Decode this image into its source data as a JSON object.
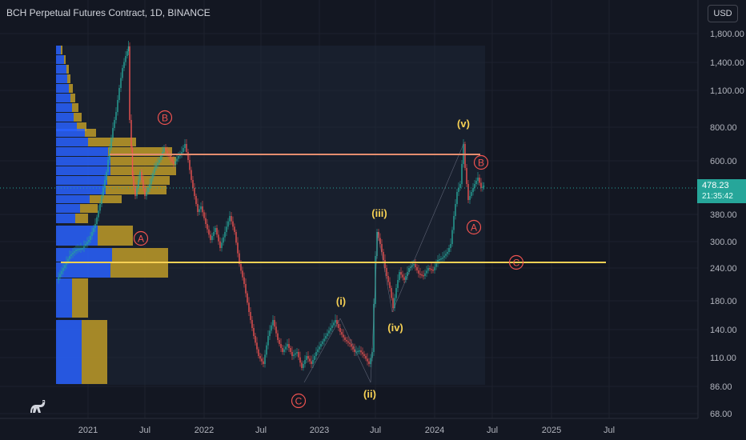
{
  "header": {
    "title": "BCH Perpetual Futures Contract, 1D, BINANCE",
    "currency_button": "USD"
  },
  "price_axis": {
    "labels": [
      "1,800.00",
      "1,400.00",
      "1,100.00",
      "800.00",
      "600.00",
      "380.00",
      "300.00",
      "240.00",
      "180.00",
      "140.00",
      "110.00",
      "86.00",
      "68.00"
    ],
    "current_price": "478.23",
    "countdown": "21:35:42"
  },
  "time_axis": {
    "labels": [
      "2021",
      "Jul",
      "2022",
      "Jul",
      "2023",
      "Jul",
      "2024",
      "Jul",
      "2025",
      "Jul"
    ]
  },
  "annotations": {
    "red": [
      "B",
      "A",
      "B",
      "A",
      "C",
      "C"
    ],
    "yellow": [
      "(v)",
      "(iii)",
      "(i)",
      "(iv)",
      "(ii)"
    ]
  },
  "colors": {
    "background": "#131722",
    "up_candle": "#26a69a",
    "down_candle": "#ef5350",
    "volume_profile_blue": "#2962ff",
    "volume_profile_gold": "#c9a227",
    "support_line": "#f7d154",
    "resistance_line": "#e58e6f",
    "wave_red": "#ef5350",
    "wave_yellow": "#f7d154"
  },
  "icons": [
    "tradingview-logo-icon"
  ]
}
